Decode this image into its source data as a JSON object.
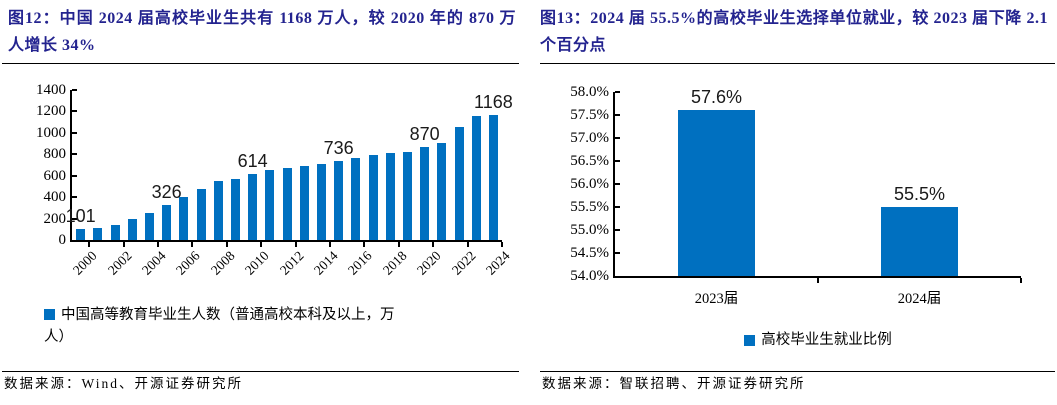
{
  "colors": {
    "bar_blue": "#0070C0",
    "title_navy": "#23238F",
    "axis_black": "#000000"
  },
  "figure12": {
    "title": "图12：中国 2024 届高校毕业生共有 1168 万人，较 2020 年的 870 万人增长 34%",
    "legend_label": "中国高等教育毕业生人数（普通高校本科及以上，万人）",
    "source": "数据来源：Wind、开源证券研究所"
  },
  "figure13": {
    "title": "图13：2024 届 55.5%的高校毕业生选择单位就业，较 2023 届下降 2.1 个百分点",
    "legend_label": "高校毕业生就业比例",
    "source": "数据来源：智联招聘、开源证券研究所"
  },
  "chart_data": [
    {
      "type": "bar",
      "title": "中国 2024 届高校毕业生共有 1168 万人，较 2020 年的 870 万人增长 34%",
      "categories": [
        "2000",
        "2001",
        "2002",
        "2003",
        "2004",
        "2005",
        "2006",
        "2007",
        "2008",
        "2009",
        "2010",
        "2011",
        "2012",
        "2013",
        "2014",
        "2015",
        "2016",
        "2017",
        "2018",
        "2019",
        "2020",
        "2021",
        "2022",
        "2023",
        "2024"
      ],
      "values": [
        101,
        110,
        142,
        199,
        254,
        326,
        403,
        479,
        547,
        568,
        614,
        651,
        673,
        690,
        713,
        736,
        761,
        794,
        814,
        823,
        870,
        903,
        1054,
        1158,
        1168
      ],
      "data_labels": {
        "2000": "101",
        "2005": "326",
        "2010": "614",
        "2015": "736",
        "2020": "870",
        "2024": "1168"
      },
      "xlabel": "",
      "ylabel": "",
      "ylim": [
        0,
        1400
      ],
      "ytick_step": 200,
      "ytick_labels": [
        "0",
        "200",
        "400",
        "600",
        "800",
        "1000",
        "1200",
        "1400"
      ],
      "xtick_labels": [
        "2000",
        "2002",
        "2004",
        "2006",
        "2008",
        "2010",
        "2012",
        "2014",
        "2016",
        "2018",
        "2020",
        "2022",
        "2024"
      ],
      "grid": false,
      "legend": [
        "中国高等教育毕业生人数（普通高校本科及以上，万人）"
      ],
      "legend_position": "bottom",
      "bar_color": "#0070C0"
    },
    {
      "type": "bar",
      "title": "2024 届 55.5%的高校毕业生选择单位就业，较 2023 届下降 2.1 个百分点",
      "categories": [
        "2023届",
        "2024届"
      ],
      "values": [
        57.6,
        55.5
      ],
      "data_labels": [
        "57.6%",
        "55.5%"
      ],
      "xlabel": "",
      "ylabel": "",
      "ylim": [
        54.0,
        58.0
      ],
      "ytick_step": 0.5,
      "ytick_labels": [
        "54.0%",
        "54.5%",
        "55.0%",
        "55.5%",
        "56.0%",
        "56.5%",
        "57.0%",
        "57.5%",
        "58.0%"
      ],
      "grid": false,
      "legend": [
        "高校毕业生就业比例"
      ],
      "legend_position": "bottom",
      "bar_color": "#0070C0"
    }
  ]
}
